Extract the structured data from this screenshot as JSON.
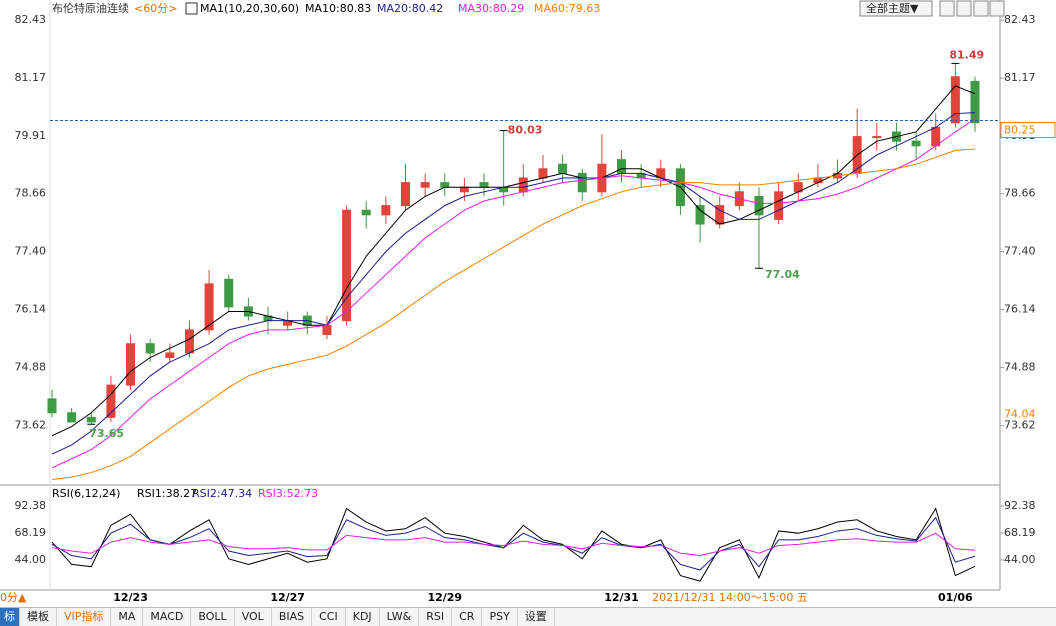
{
  "header": {
    "instrument": "布伦特原油连续",
    "period": "<60分>",
    "ma_set": "MA1(10,20,30,60)",
    "theme_button": "全部主题▼"
  },
  "chart_data": [
    {
      "type": "candlestick",
      "open": [
        74.2,
        73.9,
        73.8,
        73.8,
        74.5,
        75.4,
        75.1,
        75.2,
        75.7,
        76.8,
        76.2,
        76.0,
        75.8,
        76.0,
        75.6,
        75.9,
        78.3,
        78.2,
        78.4,
        78.8,
        78.9,
        78.7,
        78.9,
        78.8,
        78.7,
        79.0,
        79.3,
        79.1,
        78.7,
        79.4,
        79.1,
        79.0,
        79.2,
        78.4,
        78.0,
        78.4,
        78.6,
        78.1,
        78.7,
        78.9,
        79.0,
        79.1,
        79.9,
        80.0,
        79.8,
        79.7,
        80.2,
        81.1
      ],
      "high": [
        74.4,
        74.0,
        73.9,
        74.7,
        75.6,
        75.5,
        75.4,
        75.9,
        77.0,
        76.9,
        76.4,
        76.2,
        76.1,
        76.1,
        76.0,
        78.4,
        78.5,
        78.6,
        79.3,
        79.1,
        79.1,
        79.0,
        79.1,
        80.03,
        79.3,
        79.5,
        79.5,
        79.2,
        79.95,
        79.6,
        79.3,
        79.4,
        79.3,
        78.6,
        78.6,
        78.9,
        78.8,
        78.9,
        79.1,
        79.3,
        79.4,
        80.5,
        80.2,
        80.2,
        80.0,
        80.4,
        81.49,
        81.2
      ],
      "low": [
        73.8,
        73.7,
        73.65,
        73.7,
        74.4,
        75.0,
        75.0,
        75.1,
        75.6,
        76.1,
        75.9,
        75.6,
        75.7,
        75.6,
        75.5,
        75.8,
        77.9,
        78.0,
        78.3,
        78.6,
        78.6,
        78.5,
        78.6,
        78.4,
        78.6,
        78.9,
        78.9,
        78.5,
        78.6,
        78.9,
        78.8,
        78.8,
        78.2,
        77.6,
        77.9,
        78.3,
        77.04,
        78.0,
        78.5,
        78.8,
        78.9,
        79.0,
        79.6,
        79.6,
        79.4,
        79.6,
        80.1,
        80.0
      ],
      "close": [
        73.9,
        73.7,
        73.7,
        74.5,
        75.4,
        75.2,
        75.2,
        75.7,
        76.7,
        76.2,
        76.0,
        75.9,
        75.9,
        75.8,
        75.8,
        78.3,
        78.2,
        78.4,
        78.9,
        78.9,
        78.8,
        78.8,
        78.8,
        78.7,
        79.0,
        79.2,
        79.1,
        78.7,
        79.3,
        79.1,
        79.0,
        79.2,
        78.4,
        78.0,
        78.4,
        78.7,
        78.2,
        78.7,
        78.9,
        79.0,
        79.1,
        79.9,
        79.9,
        79.8,
        79.7,
        80.1,
        81.2,
        80.2
      ],
      "up_color": "#e0443a",
      "down_color": "#3e9a45",
      "ylim": [
        72.33,
        82.65
      ],
      "yticks": [
        73.62,
        74.88,
        76.14,
        {
          "value": 77.4,
          "label": "77.40"
        },
        78.66,
        79.91,
        81.17,
        82.43
      ],
      "series": [
        {
          "name": "MA10:80.83",
          "color": "#000000",
          "values": [
            73.4,
            73.6,
            73.9,
            74.3,
            74.8,
            75.1,
            75.3,
            75.5,
            75.8,
            76.1,
            76.1,
            76.0,
            75.9,
            75.8,
            75.8,
            76.6,
            77.3,
            77.8,
            78.3,
            78.6,
            78.8,
            78.8,
            78.8,
            78.8,
            78.9,
            79.0,
            79.1,
            79.0,
            79.0,
            79.2,
            79.2,
            79.0,
            78.8,
            78.3,
            78.0,
            78.1,
            78.3,
            78.5,
            78.7,
            78.9,
            79.1,
            79.5,
            79.8,
            79.9,
            80.0,
            80.5,
            81.0,
            80.83
          ]
        },
        {
          "name": "MA20:80.42",
          "color": "#1c1c8c",
          "values": [
            73.0,
            73.2,
            73.5,
            73.9,
            74.3,
            74.7,
            75.0,
            75.2,
            75.4,
            75.7,
            75.8,
            75.9,
            75.9,
            75.9,
            75.8,
            76.4,
            76.9,
            77.4,
            77.8,
            78.1,
            78.4,
            78.6,
            78.7,
            78.8,
            78.8,
            78.9,
            79.0,
            79.0,
            79.0,
            79.1,
            79.1,
            79.0,
            78.9,
            78.6,
            78.3,
            78.1,
            78.1,
            78.3,
            78.5,
            78.7,
            78.9,
            79.2,
            79.5,
            79.7,
            79.9,
            80.1,
            80.4,
            80.42
          ]
        },
        {
          "name": "MA30:80.29",
          "color": "#e020e0",
          "values": [
            72.7,
            72.9,
            73.1,
            73.4,
            73.8,
            74.2,
            74.5,
            74.8,
            75.1,
            75.4,
            75.6,
            75.7,
            75.7,
            75.75,
            75.8,
            76.1,
            76.5,
            76.9,
            77.3,
            77.7,
            78.0,
            78.3,
            78.5,
            78.6,
            78.7,
            78.8,
            78.9,
            78.95,
            79.0,
            79.05,
            79.0,
            78.95,
            78.9,
            78.8,
            78.65,
            78.55,
            78.45,
            78.45,
            78.5,
            78.55,
            78.65,
            78.8,
            79.0,
            79.2,
            79.4,
            79.7,
            80.0,
            80.29
          ]
        },
        {
          "name": "MA60:79.63",
          "color": "#f08000",
          "values": [
            72.45,
            72.5,
            72.6,
            72.75,
            72.95,
            73.25,
            73.55,
            73.85,
            74.15,
            74.45,
            74.7,
            74.85,
            74.95,
            75.05,
            75.15,
            75.35,
            75.6,
            75.85,
            76.15,
            76.45,
            76.75,
            77.0,
            77.25,
            77.5,
            77.75,
            78.0,
            78.2,
            78.4,
            78.55,
            78.7,
            78.8,
            78.85,
            78.9,
            78.9,
            78.85,
            78.85,
            78.85,
            78.9,
            78.95,
            79.0,
            79.05,
            79.1,
            79.15,
            79.2,
            79.3,
            79.45,
            79.6,
            79.63
          ]
        }
      ],
      "last_price": 80.25,
      "axis_marker": 74.04
    },
    {
      "type": "line",
      "title": "RSI(6,12,24)",
      "categories": [
        null,
        null,
        null,
        null,
        "12/23",
        null,
        null,
        null,
        null,
        null,
        null,
        null,
        "12/27",
        null,
        null,
        null,
        null,
        null,
        null,
        null,
        "12/29",
        null,
        null,
        null,
        null,
        null,
        null,
        null,
        null,
        "12/31",
        null,
        null,
        null,
        null,
        null,
        null,
        null,
        null,
        null,
        null,
        null,
        null,
        null,
        null,
        null,
        null,
        "01/06",
        null
      ],
      "ylim": [
        12.6,
        106.7
      ],
      "yticks": [
        {
          "value": 44,
          "label": "44.00"
        },
        68.19,
        92.38
      ],
      "series": [
        {
          "name": "RSI1:38.27",
          "color": "#000000",
          "values": [
            60,
            40,
            38,
            75,
            85,
            62,
            58,
            70,
            80,
            45,
            40,
            45,
            50,
            42,
            45,
            90,
            78,
            70,
            72,
            82,
            68,
            65,
            60,
            55,
            75,
            62,
            58,
            45,
            70,
            58,
            55,
            62,
            30,
            25,
            55,
            62,
            28,
            70,
            68,
            72,
            78,
            80,
            70,
            65,
            62,
            90,
            30,
            38.27
          ]
        },
        {
          "name": "RSI2:47.34",
          "color": "#1c1c8c",
          "values": [
            58,
            48,
            45,
            68,
            76,
            62,
            58,
            64,
            72,
            52,
            48,
            50,
            52,
            47,
            48,
            80,
            72,
            66,
            68,
            74,
            64,
            62,
            58,
            55,
            68,
            60,
            57,
            50,
            64,
            57,
            55,
            58,
            40,
            35,
            52,
            58,
            38,
            62,
            62,
            65,
            70,
            72,
            66,
            63,
            61,
            82,
            42,
            47.34
          ]
        },
        {
          "name": "RSI3:52.73",
          "color": "#e020e0",
          "values": [
            55,
            52,
            50,
            60,
            64,
            60,
            58,
            60,
            62,
            56,
            54,
            54,
            55,
            53,
            53,
            66,
            64,
            62,
            62,
            64,
            60,
            60,
            58,
            57,
            61,
            58,
            57,
            54,
            59,
            57,
            56,
            57,
            50,
            48,
            52,
            55,
            50,
            57,
            58,
            60,
            62,
            63,
            61,
            60,
            60,
            68,
            54,
            52.73
          ]
        }
      ]
    }
  ],
  "status": {
    "left": "0分▲",
    "crosshair": "2021/12/31 14:00～15:00 五"
  },
  "toolbar": [
    "标",
    "模板",
    "VIP指标",
    "MA",
    "MACD",
    "BOLL",
    "VOL",
    "BIAS",
    "CCI",
    "KDJ",
    "LW&",
    "RSI",
    "CR",
    "PSY",
    "设置"
  ]
}
